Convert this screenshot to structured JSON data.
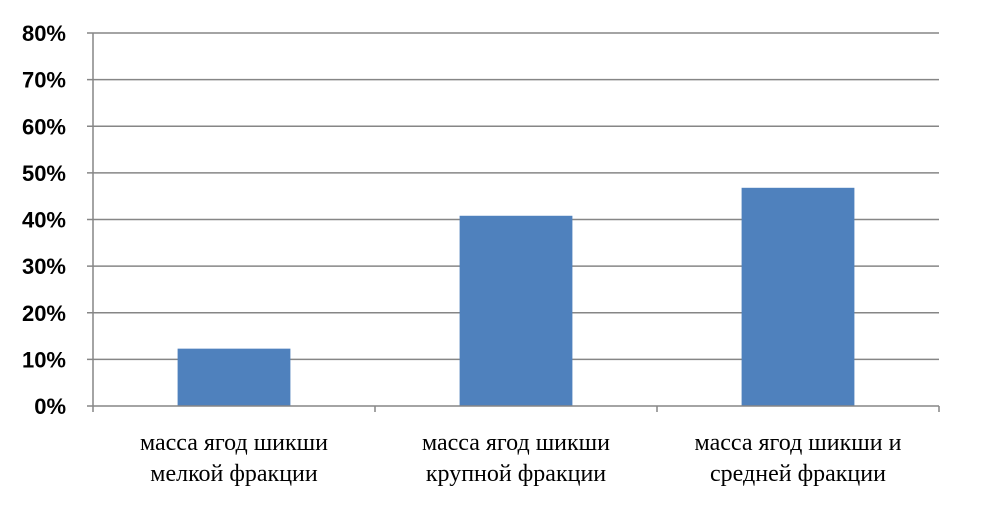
{
  "chart_data": {
    "type": "bar",
    "title": "",
    "xlabel": "",
    "ylabel": "",
    "categories": [
      [
        "масса ягод  шикши",
        "мелкой фракции"
      ],
      [
        "масса ягод шикши",
        "крупной фракции"
      ],
      [
        "масса ягод шикши и",
        "средней фракции"
      ]
    ],
    "values": [
      12.3,
      40.8,
      46.8
    ],
    "ylim": [
      0,
      80
    ],
    "yticks": [
      0,
      10,
      20,
      30,
      40,
      50,
      60,
      70,
      80
    ],
    "ytick_labels": [
      "0%",
      "10%",
      "20%",
      "30%",
      "40%",
      "50%",
      "60%",
      "70%",
      "80%"
    ],
    "grid": true,
    "legend": "none",
    "bar_color": "#4f81bd"
  }
}
